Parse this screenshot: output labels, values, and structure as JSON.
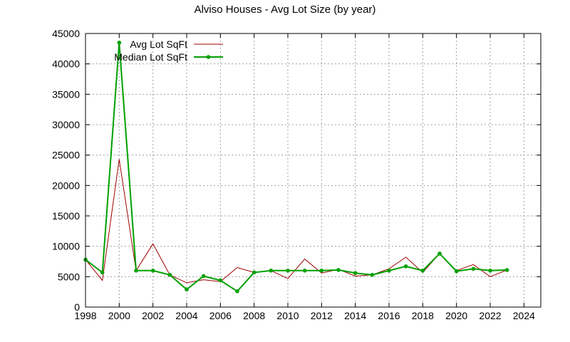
{
  "chart_data": {
    "type": "line",
    "title": "Alviso Houses - Avg Lot Size (by year)",
    "xlabel": "",
    "ylabel": "",
    "xlim": [
      1998,
      2025
    ],
    "ylim": [
      0,
      45000
    ],
    "xticks": [
      1998,
      2000,
      2002,
      2004,
      2006,
      2008,
      2010,
      2012,
      2014,
      2016,
      2018,
      2020,
      2022,
      2024
    ],
    "yticks": [
      0,
      5000,
      10000,
      15000,
      20000,
      25000,
      30000,
      35000,
      40000,
      45000
    ],
    "grid": true,
    "legend_position": "top-left",
    "x": [
      1998,
      1999,
      2000,
      2001,
      2002,
      2003,
      2004,
      2005,
      2006,
      2007,
      2008,
      2009,
      2010,
      2011,
      2012,
      2013,
      2014,
      2015,
      2016,
      2017,
      2018,
      2019,
      2020,
      2021,
      2022,
      2023
    ],
    "series": [
      {
        "name": "Avg Lot SqFt",
        "color": "#a00000",
        "marker": false,
        "values": [
          7800,
          4400,
          24300,
          6000,
          10400,
          5300,
          4000,
          4500,
          4200,
          6500,
          5700,
          6000,
          4700,
          7900,
          5600,
          6200,
          5100,
          5300,
          6300,
          8200,
          5700,
          8800,
          6000,
          7000,
          5000,
          6100
        ]
      },
      {
        "name": "Median Lot SqFt",
        "color": "#00a000",
        "marker": true,
        "values": [
          7800,
          5700,
          43500,
          6000,
          6000,
          5300,
          2900,
          5100,
          4400,
          2600,
          5700,
          6000,
          6000,
          6000,
          6000,
          6100,
          5600,
          5300,
          6000,
          6700,
          6000,
          8800,
          5900,
          6300,
          6000,
          6100
        ]
      }
    ]
  }
}
